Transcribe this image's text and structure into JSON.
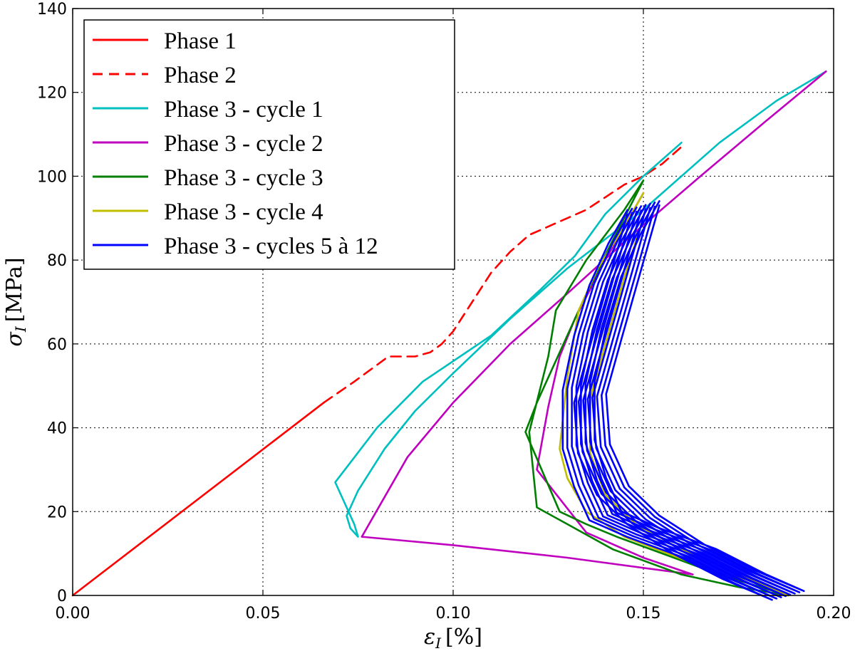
{
  "chart_data": {
    "type": "line",
    "title": "",
    "xlabel": "ε",
    "xlabel_sub": "I",
    "xlabel_unit": "[%]",
    "ylabel": "σ",
    "ylabel_sub": "I",
    "ylabel_unit": "[MPa]",
    "xlim": [
      0.0,
      0.2
    ],
    "ylim": [
      0,
      140
    ],
    "xticks": [
      0.0,
      0.05,
      0.1,
      0.15,
      0.2
    ],
    "xtick_labels": [
      "0.00",
      "0.05",
      "0.10",
      "0.15",
      "0.20"
    ],
    "yticks": [
      0,
      20,
      40,
      60,
      80,
      100,
      120,
      140
    ],
    "ytick_labels": [
      "0",
      "20",
      "40",
      "60",
      "80",
      "100",
      "120",
      "140"
    ],
    "grid": true,
    "legend_position": "top-left",
    "series": [
      {
        "name": "Phase 1",
        "color": "#ff0000",
        "dash": "solid",
        "lines": [
          [
            [
              0.0,
              0
            ],
            [
              0.066,
              46
            ]
          ]
        ]
      },
      {
        "name": "Phase 2",
        "color": "#ff0000",
        "dash": "dashed",
        "lines": [
          [
            [
              0.066,
              46
            ],
            [
              0.074,
              51
            ],
            [
              0.08,
              55
            ],
            [
              0.083,
              57
            ],
            [
              0.09,
              57
            ],
            [
              0.094,
              58
            ],
            [
              0.097,
              60
            ],
            [
              0.1,
              63
            ],
            [
              0.105,
              70
            ],
            [
              0.11,
              77
            ],
            [
              0.115,
              82
            ],
            [
              0.12,
              86
            ],
            [
              0.125,
              88
            ],
            [
              0.13,
              90
            ],
            [
              0.135,
              92
            ],
            [
              0.14,
              95
            ],
            [
              0.145,
              98
            ],
            [
              0.15,
              100
            ],
            [
              0.155,
              103
            ],
            [
              0.16,
              107
            ]
          ]
        ]
      },
      {
        "name": "Phase 3 - cycle 1",
        "color": "#00bfbf",
        "dash": "solid",
        "lines": [
          [
            [
              0.16,
              108
            ],
            [
              0.15,
              100
            ],
            [
              0.14,
              91
            ],
            [
              0.132,
              81
            ],
            [
              0.123,
              73
            ],
            [
              0.11,
              62
            ],
            [
              0.092,
              51
            ],
            [
              0.08,
              40
            ],
            [
              0.069,
              27
            ],
            [
              0.072,
              21
            ],
            [
              0.074,
              17
            ],
            [
              0.075,
              14
            ],
            [
              0.073,
              16
            ],
            [
              0.072,
              19
            ],
            [
              0.075,
              25
            ],
            [
              0.082,
              35
            ],
            [
              0.09,
              44
            ],
            [
              0.1,
              53
            ],
            [
              0.115,
              66
            ],
            [
              0.13,
              78
            ],
            [
              0.15,
              92
            ],
            [
              0.17,
              108
            ],
            [
              0.185,
              118
            ],
            [
              0.198,
              125
            ]
          ]
        ]
      },
      {
        "name": "Phase 3 - cycle 2",
        "color": "#bf00bf",
        "dash": "solid",
        "lines": [
          [
            [
              0.198,
              125
            ],
            [
              0.182,
              113
            ],
            [
              0.165,
              100
            ],
            [
              0.147,
              86
            ],
            [
              0.13,
              72
            ],
            [
              0.115,
              60
            ],
            [
              0.1,
              46
            ],
            [
              0.088,
              33
            ],
            [
              0.076,
              14
            ],
            [
              0.1,
              12
            ],
            [
              0.13,
              9
            ],
            [
              0.163,
              5
            ],
            [
              0.15,
              9
            ],
            [
              0.135,
              15
            ],
            [
              0.122,
              30
            ],
            [
              0.125,
              45
            ],
            [
              0.128,
              57
            ],
            [
              0.132,
              66
            ],
            [
              0.14,
              80
            ],
            [
              0.15,
              96
            ]
          ]
        ]
      },
      {
        "name": "Phase 3 - cycle 3",
        "color": "#007f00",
        "dash": "solid",
        "lines": [
          [
            [
              0.15,
              99
            ],
            [
              0.145,
              92
            ],
            [
              0.135,
              80
            ],
            [
              0.127,
              68
            ],
            [
              0.125,
              57
            ],
            [
              0.12,
              39
            ],
            [
              0.121,
              30
            ],
            [
              0.122,
              21
            ],
            [
              0.13,
              17
            ],
            [
              0.142,
              11
            ],
            [
              0.16,
              5
            ],
            [
              0.175,
              2
            ],
            [
              0.188,
              0
            ],
            [
              0.17,
              5
            ],
            [
              0.155,
              10
            ],
            [
              0.143,
              14
            ],
            [
              0.135,
              17
            ],
            [
              0.128,
              20
            ],
            [
              0.119,
              39
            ],
            [
              0.122,
              46
            ],
            [
              0.127,
              56
            ],
            [
              0.134,
              70
            ],
            [
              0.141,
              83
            ],
            [
              0.15,
              99
            ]
          ]
        ]
      },
      {
        "name": "Phase 3 - cycle 4",
        "color": "#bfbf00",
        "dash": "solid",
        "lines": [
          [
            [
              0.15,
              96
            ],
            [
              0.145,
              88
            ],
            [
              0.138,
              78
            ],
            [
              0.133,
              68
            ],
            [
              0.13,
              52
            ],
            [
              0.128,
              35
            ],
            [
              0.13,
              28
            ],
            [
              0.135,
              20
            ],
            [
              0.145,
              14
            ],
            [
              0.165,
              7
            ],
            [
              0.18,
              3
            ],
            [
              0.188,
              0
            ],
            [
              0.175,
              5
            ],
            [
              0.16,
              11
            ],
            [
              0.148,
              17
            ],
            [
              0.14,
              24
            ],
            [
              0.136,
              34
            ],
            [
              0.136,
              47
            ],
            [
              0.14,
              60
            ],
            [
              0.145,
              76
            ],
            [
              0.15,
              90
            ]
          ]
        ]
      },
      {
        "name": "Phase 3 - cycles 5 à 12",
        "color": "#0000ff",
        "dash": "solid",
        "bundle": 8,
        "bundle_offset": [
          0.0012,
          0.3
        ],
        "lines": [
          [
            [
              0.15,
              93
            ],
            [
              0.145,
              85
            ],
            [
              0.14,
              75
            ],
            [
              0.136,
              63
            ],
            [
              0.133,
              50
            ],
            [
              0.133,
              36
            ],
            [
              0.136,
              27
            ],
            [
              0.14,
              19
            ],
            [
              0.15,
              15
            ],
            [
              0.165,
              10
            ],
            [
              0.178,
              4
            ],
            [
              0.188,
              0
            ],
            [
              0.175,
              5
            ],
            [
              0.162,
              11
            ],
            [
              0.15,
              18
            ],
            [
              0.142,
              25
            ],
            [
              0.137,
              35
            ],
            [
              0.136,
              47
            ],
            [
              0.14,
              60
            ],
            [
              0.145,
              76
            ],
            [
              0.15,
              92
            ]
          ]
        ]
      }
    ]
  }
}
